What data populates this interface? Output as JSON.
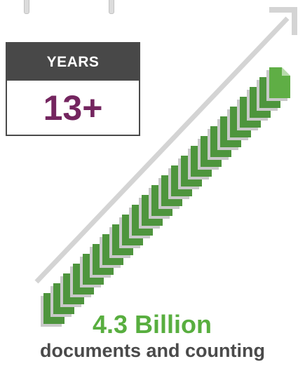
{
  "calendar": {
    "header_label": "YEARS",
    "value": "13+"
  },
  "stats": {
    "headline": "4.3 Billion",
    "subline": "documents and counting"
  },
  "colors": {
    "document_green": "#4e953d",
    "document_green_light": "#5fae45",
    "document_shadow": "#c9c9c9",
    "arrow_gray": "#d0d0d0",
    "calendar_header": "#484848",
    "calendar_value": "#74255f",
    "headline_green": "#58ae3f",
    "subline_gray": "#4a4a4a"
  },
  "icons": {
    "arrow": "up-right-arrow-icon",
    "document": "document-icon"
  }
}
